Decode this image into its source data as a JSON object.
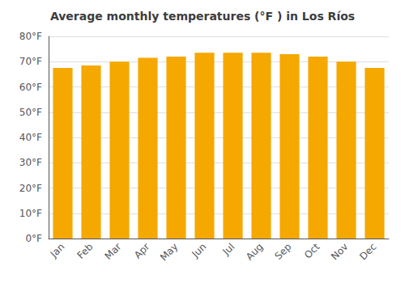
{
  "chart_data": {
    "type": "bar",
    "title": "Average monthly temperatures (°F ) in Los Ríos",
    "categories": [
      "Jan",
      "Feb",
      "Mar",
      "Apr",
      "May",
      "Jun",
      "Jul",
      "Aug",
      "Sep",
      "Oct",
      "Nov",
      "Dec"
    ],
    "values": [
      67.5,
      68.5,
      70.0,
      71.5,
      72.0,
      73.5,
      73.5,
      73.5,
      73.0,
      72.0,
      70.0,
      67.5
    ],
    "color": "#F5A800",
    "ylim": [
      0,
      80
    ],
    "yticks": [
      {
        "value": 0,
        "label": "0°F"
      },
      {
        "value": 10,
        "label": "10°F"
      },
      {
        "value": 20,
        "label": "20°F"
      },
      {
        "value": 30,
        "label": "30°F"
      },
      {
        "value": 40,
        "label": "40°F"
      },
      {
        "value": 50,
        "label": "50°F"
      },
      {
        "value": 60,
        "label": "60°F"
      },
      {
        "value": 70,
        "label": "70°F"
      },
      {
        "value": 80,
        "label": "80°F"
      }
    ],
    "grid": true
  }
}
